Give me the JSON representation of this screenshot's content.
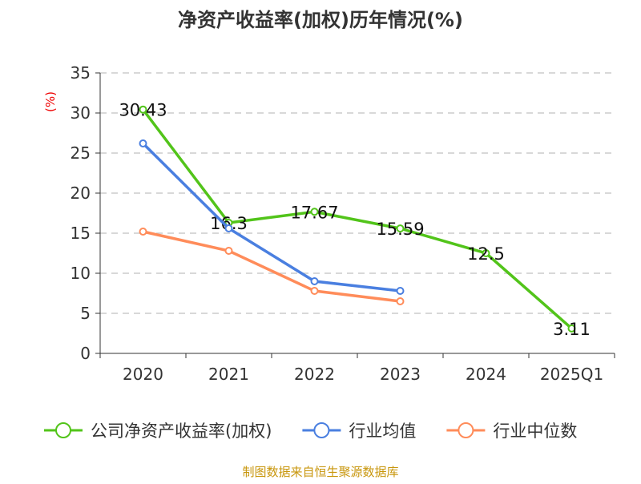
{
  "chart_data": {
    "type": "line",
    "title": "净资产收益率(加权)历年情况(%)",
    "ylabel": "(%)",
    "xlabel": "",
    "categories": [
      "2020",
      "2021",
      "2022",
      "2023",
      "2024",
      "2025Q1"
    ],
    "ylim": [
      0,
      35
    ],
    "yticks": [
      0,
      5,
      10,
      15,
      20,
      25,
      30,
      35
    ],
    "grid": true,
    "legend_position": "bottom",
    "series": [
      {
        "name": "公司净资产收益率(加权)",
        "color": "#52c41a",
        "values": [
          30.43,
          16.3,
          17.67,
          15.59,
          12.5,
          3.11
        ],
        "labels": [
          "30.43",
          "16.3",
          "17.67",
          "15.59",
          "12.5",
          "3.11"
        ]
      },
      {
        "name": "行业均值",
        "color": "#4a7fe0",
        "values": [
          26.2,
          15.6,
          9.0,
          7.8,
          null,
          null
        ]
      },
      {
        "name": "行业中位数",
        "color": "#ff8c5a",
        "values": [
          15.2,
          12.8,
          7.8,
          6.5,
          null,
          null
        ]
      }
    ]
  },
  "footer": {
    "source": "制图数据来自恒生聚源数据库"
  }
}
